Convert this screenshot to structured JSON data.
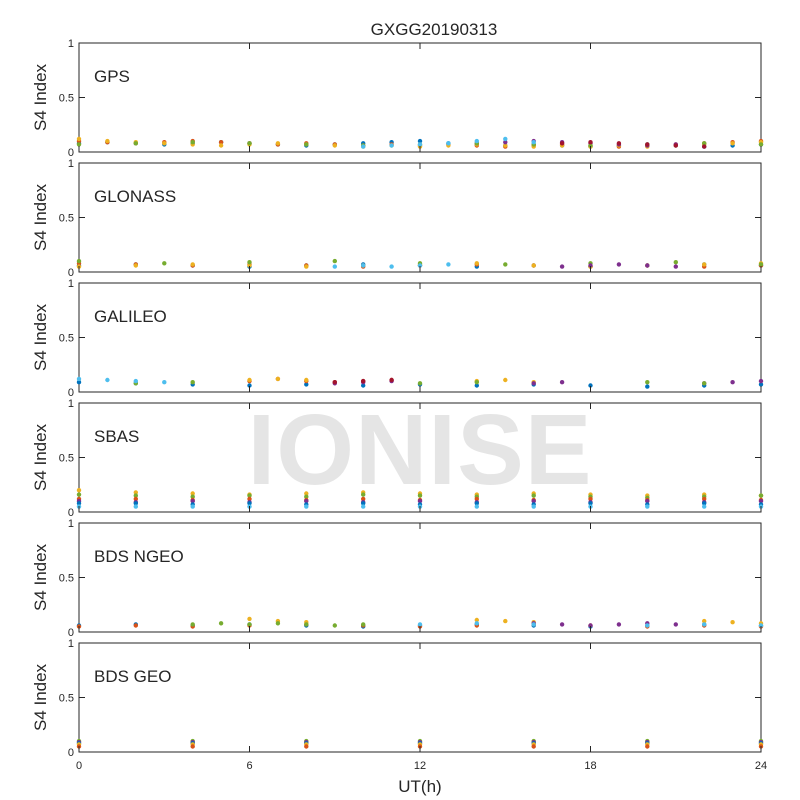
{
  "figure": {
    "title": "GXGG20190313",
    "xlabel": "UT(h)",
    "watermark": "IONISE"
  },
  "chart_data": {
    "type": "scatter",
    "title": "GXGG20190313",
    "xlabel": "UT(h)",
    "ylabel": "S4 Index",
    "xlim": [
      0,
      24
    ],
    "ylim": [
      0,
      1
    ],
    "x_ticks": [
      "0",
      "6",
      "12",
      "18",
      "24"
    ],
    "y_ticks": [
      "0",
      "0.5",
      "1"
    ],
    "grid": false,
    "series_colors": [
      "#0072BD",
      "#D95319",
      "#EDB120",
      "#7E2F8E",
      "#77AC30",
      "#4DBEEE",
      "#A2142F"
    ],
    "panels": [
      {
        "label": "GPS",
        "series": [
          {
            "color": "#0072BD",
            "x": [
              0,
              1,
              2,
              3,
              4,
              5,
              6,
              7,
              8,
              9,
              10,
              11,
              12,
              13,
              14,
              15,
              16,
              17,
              18,
              19,
              20,
              21,
              22,
              23,
              24
            ],
            "y": [
              0.08,
              0.09,
              0.08,
              0.07,
              0.08,
              0.09,
              0.08,
              0.07,
              0.06,
              0.07,
              0.08,
              0.09,
              0.1,
              0.08,
              0.07,
              0.06,
              0.07,
              0.06,
              0.05,
              0.06,
              0.07,
              0.06,
              0.05,
              0.06,
              0.07
            ]
          },
          {
            "color": "#D95319",
            "x": [
              0,
              1,
              2,
              3,
              4,
              5,
              6,
              7,
              8,
              9,
              10,
              11,
              12,
              13,
              14,
              15,
              16,
              17,
              18,
              19,
              20,
              21,
              22,
              23,
              24
            ],
            "y": [
              0.1,
              0.09,
              0.08,
              0.09,
              0.1,
              0.09,
              0.08,
              0.07,
              0.08,
              0.07,
              0.06,
              0.07,
              0.06,
              0.07,
              0.06,
              0.05,
              0.06,
              0.07,
              0.06,
              0.05,
              0.06,
              0.07,
              0.08,
              0.09,
              0.1
            ]
          },
          {
            "color": "#EDB120",
            "x": [
              0,
              1,
              2,
              3,
              4,
              5,
              6,
              7,
              8,
              9,
              10,
              11,
              12,
              13,
              14,
              15,
              16,
              17,
              18,
              19,
              20,
              21,
              22,
              23,
              24
            ],
            "y": [
              0.12,
              0.1,
              0.09,
              0.08,
              0.07,
              0.06,
              0.07,
              0.08,
              0.07,
              0.06,
              0.05,
              0.06,
              0.05,
              0.06,
              0.07,
              0.06,
              0.05,
              0.06,
              0.05,
              0.06,
              0.05,
              0.06,
              0.07,
              0.08,
              0.09
            ]
          },
          {
            "color": "#7E2F8E",
            "x": [
              14,
              15,
              16,
              17,
              18,
              19,
              20,
              21
            ],
            "y": [
              0.08,
              0.09,
              0.1,
              0.09,
              0.08,
              0.07,
              0.06,
              0.07
            ]
          },
          {
            "color": "#77AC30",
            "x": [
              0,
              2,
              4,
              6,
              8,
              10,
              12,
              14,
              16,
              18,
              20,
              22,
              24
            ],
            "y": [
              0.07,
              0.08,
              0.09,
              0.08,
              0.07,
              0.06,
              0.07,
              0.08,
              0.07,
              0.06,
              0.07,
              0.08,
              0.07
            ]
          },
          {
            "color": "#4DBEEE",
            "x": [
              10,
              11,
              12,
              13,
              14,
              15,
              16
            ],
            "y": [
              0.05,
              0.06,
              0.07,
              0.08,
              0.1,
              0.12,
              0.09
            ]
          },
          {
            "color": "#A2142F",
            "x": [
              17,
              18,
              19,
              20,
              21,
              22
            ],
            "y": [
              0.08,
              0.09,
              0.08,
              0.07,
              0.06,
              0.05
            ]
          }
        ]
      },
      {
        "label": "GLONASS",
        "series": [
          {
            "color": "#0072BD",
            "x": [
              0,
              2,
              4,
              6,
              8,
              10,
              12,
              14,
              16,
              18,
              20,
              22,
              24
            ],
            "y": [
              0.06,
              0.07,
              0.06,
              0.05,
              0.06,
              0.07,
              0.06,
              0.05,
              0.06,
              0.05,
              0.06,
              0.07,
              0.06
            ]
          },
          {
            "color": "#D95319",
            "x": [
              0,
              2,
              4,
              6,
              8,
              10,
              12,
              14,
              16,
              18,
              20,
              22,
              24
            ],
            "y": [
              0.08,
              0.07,
              0.06,
              0.07,
              0.06,
              0.05,
              0.06,
              0.07,
              0.06,
              0.05,
              0.06,
              0.05,
              0.06
            ]
          },
          {
            "color": "#EDB120",
            "x": [
              0,
              2,
              4,
              6,
              8,
              10,
              12,
              14,
              16,
              18,
              20,
              22,
              24
            ],
            "y": [
              0.05,
              0.06,
              0.07,
              0.06,
              0.05,
              0.06,
              0.07,
              0.08,
              0.06,
              0.05,
              0.06,
              0.07,
              0.08
            ]
          },
          {
            "color": "#77AC30",
            "x": [
              0,
              3,
              6,
              9,
              12,
              15,
              18,
              21,
              24
            ],
            "y": [
              0.1,
              0.08,
              0.09,
              0.1,
              0.08,
              0.07,
              0.08,
              0.09,
              0.07
            ]
          },
          {
            "color": "#7E2F8E",
            "x": [
              17,
              18,
              19,
              20,
              21
            ],
            "y": [
              0.05,
              0.06,
              0.07,
              0.06,
              0.05
            ]
          },
          {
            "color": "#4DBEEE",
            "x": [
              9,
              10,
              11,
              12,
              13
            ],
            "y": [
              0.05,
              0.06,
              0.05,
              0.06,
              0.07
            ]
          }
        ]
      },
      {
        "label": "GALILEO",
        "series": [
          {
            "color": "#0072BD",
            "x": [
              0,
              2,
              4,
              6,
              8,
              10,
              12,
              14,
              16,
              18,
              20,
              22,
              24
            ],
            "y": [
              0.09,
              0.08,
              0.07,
              0.06,
              0.07,
              0.06,
              0.07,
              0.06,
              0.07,
              0.06,
              0.05,
              0.06,
              0.07
            ]
          },
          {
            "color": "#D95319",
            "x": [
              6,
              7,
              8,
              9,
              10,
              11
            ],
            "y": [
              0.1,
              0.12,
              0.1,
              0.09,
              0.1,
              0.11
            ]
          },
          {
            "color": "#EDB120",
            "x": [
              6,
              7,
              8,
              14,
              15,
              16
            ],
            "y": [
              0.11,
              0.12,
              0.11,
              0.1,
              0.11,
              0.09
            ]
          },
          {
            "color": "#7E2F8E",
            "x": [
              9,
              10,
              11,
              16,
              17,
              22,
              23,
              24
            ],
            "y": [
              0.08,
              0.09,
              0.1,
              0.08,
              0.09,
              0.08,
              0.09,
              0.1
            ]
          },
          {
            "color": "#77AC30",
            "x": [
              2,
              4,
              12,
              14,
              20,
              22
            ],
            "y": [
              0.08,
              0.09,
              0.08,
              0.09,
              0.09,
              0.08
            ]
          },
          {
            "color": "#4DBEEE",
            "x": [
              0,
              1,
              2,
              3
            ],
            "y": [
              0.12,
              0.11,
              0.1,
              0.09
            ]
          },
          {
            "color": "#A2142F",
            "x": [
              9,
              10,
              11
            ],
            "y": [
              0.09,
              0.1,
              0.11
            ]
          }
        ]
      },
      {
        "label": "SBAS",
        "series": [
          {
            "color": "#EDB120",
            "x": [
              0,
              2,
              4,
              6,
              8,
              10,
              12,
              14,
              16,
              18,
              20,
              22,
              24
            ],
            "y": [
              0.2,
              0.18,
              0.17,
              0.16,
              0.17,
              0.18,
              0.17,
              0.16,
              0.17,
              0.16,
              0.15,
              0.16,
              0.15
            ]
          },
          {
            "color": "#77AC30",
            "x": [
              0,
              2,
              4,
              6,
              8,
              10,
              12,
              14,
              16,
              18,
              20,
              22,
              24
            ],
            "y": [
              0.16,
              0.15,
              0.14,
              0.15,
              0.14,
              0.16,
              0.15,
              0.14,
              0.15,
              0.14,
              0.13,
              0.14,
              0.15
            ]
          },
          {
            "color": "#D95319",
            "x": [
              0,
              2,
              4,
              6,
              8,
              10,
              12,
              14,
              16,
              18,
              20,
              22,
              24
            ],
            "y": [
              0.12,
              0.12,
              0.11,
              0.12,
              0.11,
              0.12,
              0.11,
              0.12,
              0.11,
              0.12,
              0.11,
              0.12,
              0.11
            ]
          },
          {
            "color": "#7E2F8E",
            "x": [
              0,
              2,
              4,
              6,
              8,
              10,
              12,
              14,
              16,
              18,
              20,
              22,
              24
            ],
            "y": [
              0.1,
              0.09,
              0.1,
              0.09,
              0.1,
              0.09,
              0.1,
              0.09,
              0.1,
              0.09,
              0.1,
              0.09,
              0.1
            ]
          },
          {
            "color": "#0072BD",
            "x": [
              0,
              2,
              4,
              6,
              8,
              10,
              12,
              14,
              16,
              18,
              20,
              22,
              24
            ],
            "y": [
              0.08,
              0.08,
              0.07,
              0.08,
              0.07,
              0.08,
              0.07,
              0.08,
              0.07,
              0.08,
              0.07,
              0.08,
              0.07
            ]
          },
          {
            "color": "#4DBEEE",
            "x": [
              0,
              2,
              4,
              6,
              8,
              10,
              12,
              14,
              16,
              18,
              20,
              22,
              24
            ],
            "y": [
              0.05,
              0.05,
              0.05,
              0.05,
              0.05,
              0.05,
              0.05,
              0.05,
              0.05,
              0.05,
              0.05,
              0.05,
              0.05
            ]
          }
        ]
      },
      {
        "label": "BDS NGEO",
        "series": [
          {
            "color": "#0072BD",
            "x": [
              0,
              2,
              4,
              6,
              8,
              10,
              12,
              14,
              16,
              18,
              20,
              22,
              24
            ],
            "y": [
              0.06,
              0.07,
              0.06,
              0.07,
              0.06,
              0.05,
              0.06,
              0.07,
              0.06,
              0.05,
              0.06,
              0.07,
              0.06
            ]
          },
          {
            "color": "#D95319",
            "x": [
              0,
              2,
              4,
              6,
              8,
              10,
              12,
              14,
              16,
              18,
              20,
              22,
              24
            ],
            "y": [
              0.05,
              0.06,
              0.05,
              0.06,
              0.07,
              0.06,
              0.05,
              0.06,
              0.07,
              0.06,
              0.05,
              0.06,
              0.05
            ]
          },
          {
            "color": "#EDB120",
            "x": [
              6,
              7,
              8,
              14,
              15,
              16,
              22,
              23,
              24
            ],
            "y": [
              0.12,
              0.1,
              0.09,
              0.11,
              0.1,
              0.09,
              0.1,
              0.09,
              0.08
            ]
          },
          {
            "color": "#77AC30",
            "x": [
              4,
              5,
              6,
              7,
              8,
              9,
              10
            ],
            "y": [
              0.07,
              0.08,
              0.07,
              0.08,
              0.07,
              0.06,
              0.07
            ]
          },
          {
            "color": "#7E2F8E",
            "x": [
              16,
              17,
              18,
              19,
              20,
              21
            ],
            "y": [
              0.08,
              0.07,
              0.06,
              0.07,
              0.08,
              0.07
            ]
          },
          {
            "color": "#4DBEEE",
            "x": [
              12,
              14,
              16,
              20,
              22,
              24
            ],
            "y": [
              0.07,
              0.08,
              0.07,
              0.06,
              0.07,
              0.06
            ]
          }
        ]
      },
      {
        "label": "BDS GEO",
        "series": [
          {
            "color": "#77AC30",
            "x": [
              0,
              4,
              8,
              12,
              16,
              20,
              24
            ],
            "y": [
              0.1,
              0.1,
              0.1,
              0.1,
              0.1,
              0.1,
              0.1
            ]
          },
          {
            "color": "#7E2F8E",
            "x": [
              0,
              4,
              8,
              12,
              16,
              20,
              24
            ],
            "y": [
              0.09,
              0.09,
              0.09,
              0.09,
              0.09,
              0.09,
              0.09
            ]
          },
          {
            "color": "#0072BD",
            "x": [
              0,
              4,
              8,
              12,
              16,
              20,
              24
            ],
            "y": [
              0.08,
              0.08,
              0.08,
              0.08,
              0.08,
              0.08,
              0.08
            ]
          },
          {
            "color": "#EDB120",
            "x": [
              0,
              4,
              8,
              12,
              16,
              20,
              24
            ],
            "y": [
              0.07,
              0.07,
              0.07,
              0.07,
              0.07,
              0.07,
              0.07
            ]
          },
          {
            "color": "#D95319",
            "x": [
              0,
              4,
              8,
              12,
              16,
              20,
              24
            ],
            "y": [
              0.05,
              0.05,
              0.05,
              0.05,
              0.05,
              0.05,
              0.05
            ]
          }
        ]
      }
    ]
  }
}
